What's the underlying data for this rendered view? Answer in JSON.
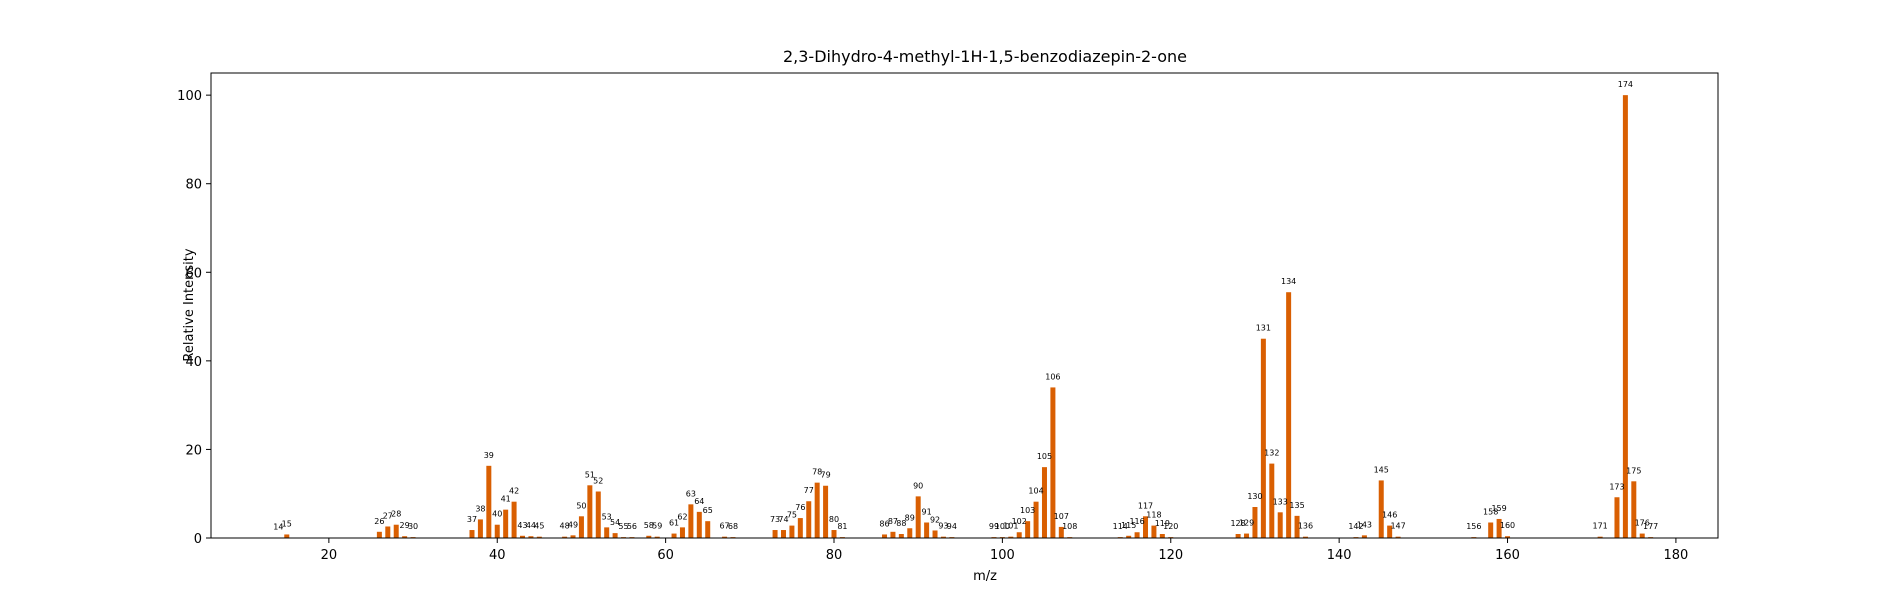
{
  "chart_data": {
    "type": "bar",
    "title": "2,3-Dihydro-4-methyl-1H-1,5-benzodiazepin-2-one",
    "xlabel": "m/z",
    "ylabel": "Relative Intensity",
    "xlim": [
      6,
      185
    ],
    "ylim": [
      0,
      105
    ],
    "xticks": [
      20,
      40,
      60,
      80,
      100,
      120,
      140,
      160,
      180
    ],
    "yticks": [
      0,
      20,
      40,
      60,
      80,
      100
    ],
    "bar_color": "#d95f02",
    "grid": false,
    "points": [
      {
        "mz": 14,
        "intensity": 0.1
      },
      {
        "mz": 15,
        "intensity": 0.8
      },
      {
        "mz": 26,
        "intensity": 1.4
      },
      {
        "mz": 27,
        "intensity": 2.6
      },
      {
        "mz": 28,
        "intensity": 3.0
      },
      {
        "mz": 29,
        "intensity": 0.4
      },
      {
        "mz": 30,
        "intensity": 0.2
      },
      {
        "mz": 37,
        "intensity": 1.8
      },
      {
        "mz": 38,
        "intensity": 4.2
      },
      {
        "mz": 39,
        "intensity": 16.3
      },
      {
        "mz": 40,
        "intensity": 3.0
      },
      {
        "mz": 41,
        "intensity": 6.4
      },
      {
        "mz": 42,
        "intensity": 8.2
      },
      {
        "mz": 43,
        "intensity": 0.5
      },
      {
        "mz": 44,
        "intensity": 0.4
      },
      {
        "mz": 45,
        "intensity": 0.3
      },
      {
        "mz": 48,
        "intensity": 0.3
      },
      {
        "mz": 49,
        "intensity": 0.6
      },
      {
        "mz": 50,
        "intensity": 4.9
      },
      {
        "mz": 51,
        "intensity": 11.9
      },
      {
        "mz": 52,
        "intensity": 10.5
      },
      {
        "mz": 53,
        "intensity": 2.4
      },
      {
        "mz": 54,
        "intensity": 1.1
      },
      {
        "mz": 55,
        "intensity": 0.2
      },
      {
        "mz": 56,
        "intensity": 0.2
      },
      {
        "mz": 58,
        "intensity": 0.5
      },
      {
        "mz": 59,
        "intensity": 0.3
      },
      {
        "mz": 61,
        "intensity": 1.0
      },
      {
        "mz": 62,
        "intensity": 2.4
      },
      {
        "mz": 63,
        "intensity": 7.6
      },
      {
        "mz": 64,
        "intensity": 5.9
      },
      {
        "mz": 65,
        "intensity": 3.8
      },
      {
        "mz": 67,
        "intensity": 0.3
      },
      {
        "mz": 68,
        "intensity": 0.2
      },
      {
        "mz": 73,
        "intensity": 1.8
      },
      {
        "mz": 74,
        "intensity": 1.8
      },
      {
        "mz": 75,
        "intensity": 2.8
      },
      {
        "mz": 76,
        "intensity": 4.5
      },
      {
        "mz": 77,
        "intensity": 8.3
      },
      {
        "mz": 78,
        "intensity": 12.5
      },
      {
        "mz": 79,
        "intensity": 11.8
      },
      {
        "mz": 80,
        "intensity": 1.8
      },
      {
        "mz": 81,
        "intensity": 0.2
      },
      {
        "mz": 86,
        "intensity": 0.8
      },
      {
        "mz": 87,
        "intensity": 1.4
      },
      {
        "mz": 88,
        "intensity": 0.9
      },
      {
        "mz": 89,
        "intensity": 2.2
      },
      {
        "mz": 90,
        "intensity": 9.4
      },
      {
        "mz": 91,
        "intensity": 3.5
      },
      {
        "mz": 92,
        "intensity": 1.7
      },
      {
        "mz": 93,
        "intensity": 0.3
      },
      {
        "mz": 94,
        "intensity": 0.2
      },
      {
        "mz": 99,
        "intensity": 0.2
      },
      {
        "mz": 100,
        "intensity": 0.2
      },
      {
        "mz": 101,
        "intensity": 0.3
      },
      {
        "mz": 102,
        "intensity": 1.3
      },
      {
        "mz": 103,
        "intensity": 3.8
      },
      {
        "mz": 104,
        "intensity": 8.2
      },
      {
        "mz": 105,
        "intensity": 16.0
      },
      {
        "mz": 106,
        "intensity": 34.0
      },
      {
        "mz": 107,
        "intensity": 2.5
      },
      {
        "mz": 108,
        "intensity": 0.2
      },
      {
        "mz": 114,
        "intensity": 0.2
      },
      {
        "mz": 115,
        "intensity": 0.5
      },
      {
        "mz": 116,
        "intensity": 1.3
      },
      {
        "mz": 117,
        "intensity": 4.9
      },
      {
        "mz": 118,
        "intensity": 2.8
      },
      {
        "mz": 119,
        "intensity": 0.9
      },
      {
        "mz": 120,
        "intensity": 0.2
      },
      {
        "mz": 128,
        "intensity": 0.9
      },
      {
        "mz": 129,
        "intensity": 1.0
      },
      {
        "mz": 130,
        "intensity": 7.0
      },
      {
        "mz": 131,
        "intensity": 45.0
      },
      {
        "mz": 132,
        "intensity": 16.8
      },
      {
        "mz": 133,
        "intensity": 5.8
      },
      {
        "mz": 134,
        "intensity": 55.5
      },
      {
        "mz": 135,
        "intensity": 5.0
      },
      {
        "mz": 136,
        "intensity": 0.3
      },
      {
        "mz": 142,
        "intensity": 0.2
      },
      {
        "mz": 143,
        "intensity": 0.6
      },
      {
        "mz": 145,
        "intensity": 13.0
      },
      {
        "mz": 146,
        "intensity": 2.8
      },
      {
        "mz": 147,
        "intensity": 0.3
      },
      {
        "mz": 156,
        "intensity": 0.2
      },
      {
        "mz": 158,
        "intensity": 3.5
      },
      {
        "mz": 159,
        "intensity": 4.3
      },
      {
        "mz": 160,
        "intensity": 0.4
      },
      {
        "mz": 171,
        "intensity": 0.3
      },
      {
        "mz": 173,
        "intensity": 9.2
      },
      {
        "mz": 174,
        "intensity": 100.0
      },
      {
        "mz": 175,
        "intensity": 12.8
      },
      {
        "mz": 176,
        "intensity": 1.0
      },
      {
        "mz": 177,
        "intensity": 0.2
      }
    ]
  }
}
